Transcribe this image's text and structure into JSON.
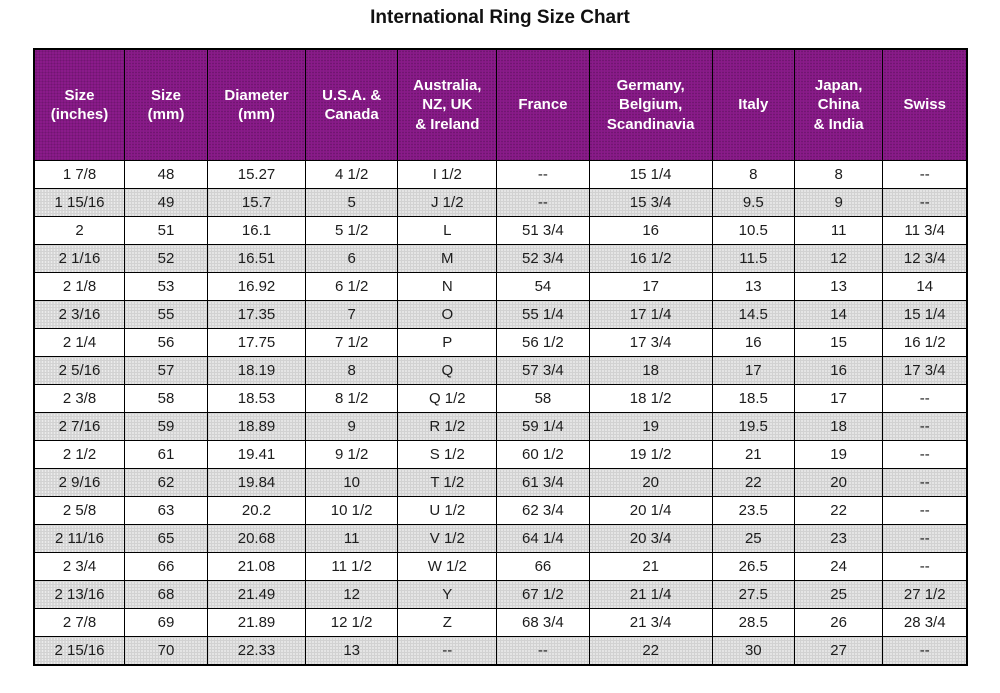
{
  "title": "International Ring Size Chart",
  "colors": {
    "header_bg": "#8a1b8a",
    "header_text": "#ffffff",
    "stripe_bg": "#d2d2d2",
    "row_bg": "#ffffff",
    "border": "#000000",
    "cell_text": "#1c1c1c"
  },
  "chart_data": {
    "type": "table",
    "title": "International Ring Size Chart",
    "columns": [
      "Size (inches)",
      "Size (mm)",
      "Diameter (mm)",
      "U.S.A. & Canada",
      "Australia, NZ, UK & Ireland",
      "France",
      "Germany, Belgium, Scandinavia",
      "Italy",
      "Japan, China & India",
      "Swiss"
    ],
    "header_display": [
      "Size\n(inches)",
      "Size\n(mm)",
      "Diameter\n(mm)",
      "U.S.A. &\nCanada",
      "Australia,\nNZ, UK\n& Ireland",
      "France",
      "Germany,\nBelgium,\nScandinavia",
      "Italy",
      "Japan,\nChina\n& India",
      "Swiss"
    ],
    "rows": [
      [
        "1 7/8",
        "48",
        "15.27",
        "4 1/2",
        "I 1/2",
        "--",
        "15 1/4",
        "8",
        "8",
        "--"
      ],
      [
        "1 15/16",
        "49",
        "15.7",
        "5",
        "J 1/2",
        "--",
        "15 3/4",
        "9.5",
        "9",
        "--"
      ],
      [
        "2",
        "51",
        "16.1",
        "5 1/2",
        "L",
        "51 3/4",
        "16",
        "10.5",
        "11",
        "11 3/4"
      ],
      [
        "2 1/16",
        "52",
        "16.51",
        "6",
        "M",
        "52 3/4",
        "16 1/2",
        "11.5",
        "12",
        "12 3/4"
      ],
      [
        "2 1/8",
        "53",
        "16.92",
        "6 1/2",
        "N",
        "54",
        "17",
        "13",
        "13",
        "14"
      ],
      [
        "2 3/16",
        "55",
        "17.35",
        "7",
        "O",
        "55 1/4",
        "17 1/4",
        "14.5",
        "14",
        "15 1/4"
      ],
      [
        "2 1/4",
        "56",
        "17.75",
        "7 1/2",
        "P",
        "56 1/2",
        "17 3/4",
        "16",
        "15",
        "16 1/2"
      ],
      [
        "2 5/16",
        "57",
        "18.19",
        "8",
        "Q",
        "57 3/4",
        "18",
        "17",
        "16",
        "17 3/4"
      ],
      [
        "2 3/8",
        "58",
        "18.53",
        "8 1/2",
        "Q 1/2",
        "58",
        "18 1/2",
        "18.5",
        "17",
        "--"
      ],
      [
        "2 7/16",
        "59",
        "18.89",
        "9",
        "R 1/2",
        "59 1/4",
        "19",
        "19.5",
        "18",
        "--"
      ],
      [
        "2 1/2",
        "61",
        "19.41",
        "9 1/2",
        "S 1/2",
        "60 1/2",
        "19 1/2",
        "21",
        "19",
        "--"
      ],
      [
        "2 9/16",
        "62",
        "19.84",
        "10",
        "T 1/2",
        "61 3/4",
        "20",
        "22",
        "20",
        "--"
      ],
      [
        "2 5/8",
        "63",
        "20.2",
        "10 1/2",
        "U 1/2",
        "62 3/4",
        "20 1/4",
        "23.5",
        "22",
        "--"
      ],
      [
        "2 11/16",
        "65",
        "20.68",
        "11",
        "V 1/2",
        "64 1/4",
        "20 3/4",
        "25",
        "23",
        "--"
      ],
      [
        "2 3/4",
        "66",
        "21.08",
        "11 1/2",
        "W 1/2",
        "66",
        "21",
        "26.5",
        "24",
        "--"
      ],
      [
        "2 13/16",
        "68",
        "21.49",
        "12",
        "Y",
        "67 1/2",
        "21 1/4",
        "27.5",
        "25",
        "27 1/2"
      ],
      [
        "2 7/8",
        "69",
        "21.89",
        "12 1/2",
        "Z",
        "68 3/4",
        "21 3/4",
        "28.5",
        "26",
        "28 3/4"
      ],
      [
        "2 15/16",
        "70",
        "22.33",
        "13",
        "--",
        "--",
        "22",
        "30",
        "27",
        "--"
      ]
    ]
  }
}
